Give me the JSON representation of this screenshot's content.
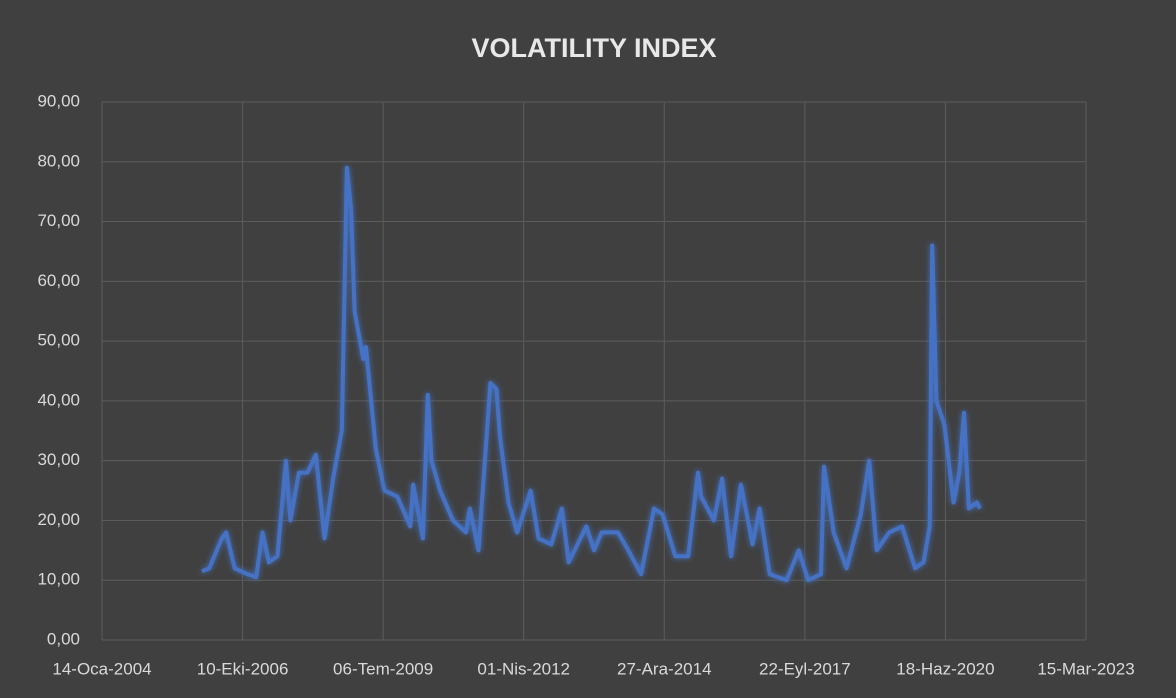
{
  "chart_data": {
    "type": "line",
    "title": "VOLATILITY INDEX",
    "x": [
      "2005-12-25",
      "2006-02-15",
      "2006-05-15",
      "2006-06-15",
      "2006-08-15",
      "2006-11-15",
      "2007-01-15",
      "2007-03-01",
      "2007-04-15",
      "2007-06-15",
      "2007-08-15",
      "2007-09-15",
      "2007-11-15",
      "2008-01-15",
      "2008-03-15",
      "2008-05-15",
      "2008-07-15",
      "2008-09-15",
      "2008-10-21",
      "2008-11-20",
      "2008-12-15",
      "2009-02-15",
      "2009-03-05",
      "2009-05-15",
      "2009-07-15",
      "2009-10-15",
      "2010-01-15",
      "2010-02-05",
      "2010-04-15",
      "2010-05-20",
      "2010-06-15",
      "2010-08-15",
      "2010-11-15",
      "2011-02-15",
      "2011-03-15",
      "2011-05-15",
      "2011-08-08",
      "2011-09-20",
      "2011-10-15",
      "2011-12-15",
      "2012-02-15",
      "2012-05-20",
      "2012-07-15",
      "2012-10-15",
      "2012-12-28",
      "2013-02-15",
      "2013-06-20",
      "2013-08-15",
      "2013-10-08",
      "2014-01-31",
      "2014-04-15",
      "2014-07-15",
      "2014-10-15",
      "2014-12-15",
      "2015-03-15",
      "2015-06-15",
      "2015-08-24",
      "2015-09-15",
      "2015-12-15",
      "2016-02-11",
      "2016-04-15",
      "2016-06-24",
      "2016-09-15",
      "2016-11-04",
      "2017-01-15",
      "2017-05-15",
      "2017-08-10",
      "2017-10-15",
      "2018-01-15",
      "2018-02-05",
      "2018-04-15",
      "2018-07-15",
      "2018-10-25",
      "2018-12-24",
      "2019-02-15",
      "2019-05-15",
      "2019-08-15",
      "2019-11-15",
      "2020-01-15",
      "2020-02-27",
      "2020-03-16",
      "2020-04-15",
      "2020-06-11",
      "2020-08-15",
      "2020-09-25",
      "2020-10-28",
      "2020-12-01",
      "2021-01-27",
      "2021-02-20"
    ],
    "values": [
      11.5,
      12,
      17,
      18,
      12,
      11,
      10.5,
      18,
      13,
      14,
      30,
      20,
      28,
      28,
      31,
      17,
      27,
      35,
      79,
      72,
      55,
      47,
      49,
      32,
      25,
      24,
      19,
      26,
      17,
      41,
      30,
      25,
      20,
      18,
      22,
      15,
      43,
      42,
      34,
      23,
      18,
      25,
      17,
      16,
      22,
      13,
      19,
      15,
      18,
      18,
      15,
      11,
      22,
      21,
      14,
      14,
      28,
      24,
      20,
      27,
      14,
      26,
      16,
      22,
      11,
      10,
      15,
      10,
      11,
      29,
      18,
      12,
      21,
      30,
      15,
      18,
      19,
      12,
      13,
      19,
      66,
      40,
      36,
      23,
      28,
      38,
      22,
      23,
      22
    ],
    "color": "#4472c4",
    "xlim": [
      "2004-01-14",
      "2023-03-15"
    ],
    "xticks": [
      {
        "value": "2004-01-14",
        "label": "14-Oca-2004"
      },
      {
        "value": "2006-10-10",
        "label": "10-Eki-2006"
      },
      {
        "value": "2009-07-06",
        "label": "06-Tem-2009"
      },
      {
        "value": "2012-04-01",
        "label": "01-Nis-2012"
      },
      {
        "value": "2014-12-27",
        "label": "27-Ara-2014"
      },
      {
        "value": "2017-09-22",
        "label": "22-Eyl-2017"
      },
      {
        "value": "2020-06-18",
        "label": "18-Haz-2020"
      },
      {
        "value": "2023-03-15",
        "label": "15-Mar-2023"
      }
    ],
    "ylim": [
      0,
      90
    ],
    "yticks": [
      {
        "value": 0,
        "label": "0,00"
      },
      {
        "value": 10,
        "label": "10,00"
      },
      {
        "value": 20,
        "label": "20,00"
      },
      {
        "value": 30,
        "label": "30,00"
      },
      {
        "value": 40,
        "label": "40,00"
      },
      {
        "value": 50,
        "label": "50,00"
      },
      {
        "value": 60,
        "label": "60,00"
      },
      {
        "value": 70,
        "label": "70,00"
      },
      {
        "value": 80,
        "label": "80,00"
      },
      {
        "value": 90,
        "label": "90,00"
      }
    ],
    "grid": true
  }
}
